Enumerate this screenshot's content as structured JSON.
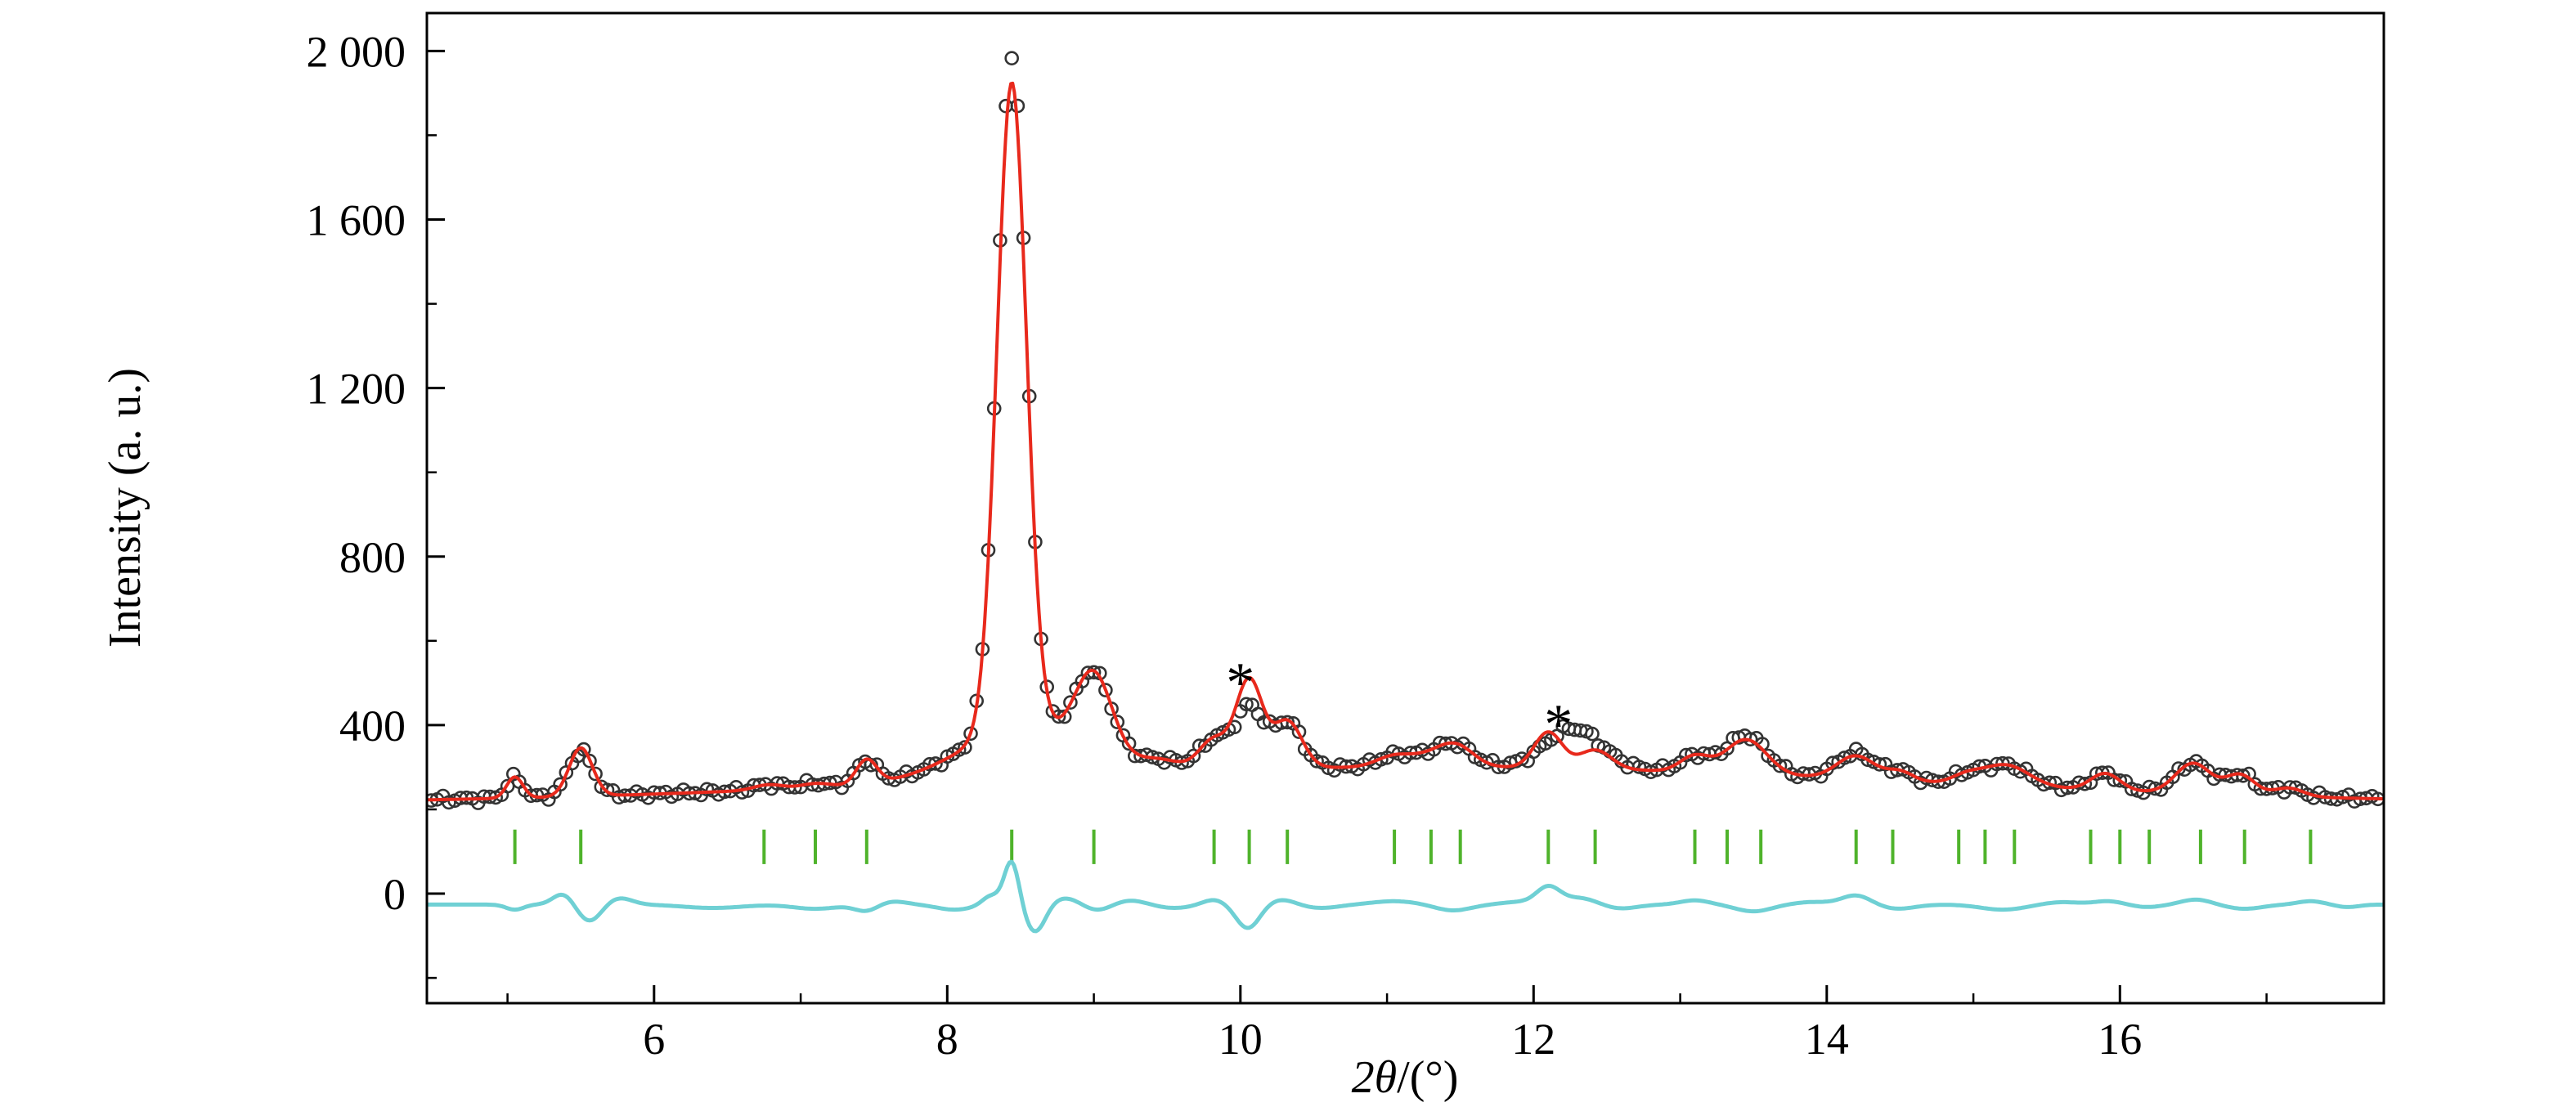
{
  "figure": {
    "background": "#ffffff",
    "frame_color": "#000000"
  },
  "chart_data": {
    "type": "line",
    "subtype": "rietveld-refinement-powder-xrd",
    "title": "",
    "xlabel_italic": "2θ",
    "xlabel_rest": "/(°)",
    "ylabel": "Intensity (a. u.)",
    "xlim": [
      4.45,
      17.8
    ],
    "ylim": [
      -260,
      2090
    ],
    "xticks": [
      6,
      8,
      10,
      12,
      14,
      16
    ],
    "xtick_labels": [
      "6",
      "8",
      "10",
      "12",
      "14",
      "16"
    ],
    "x_minor_step": 1,
    "yticks": [
      0,
      400,
      800,
      1200,
      1600,
      2000
    ],
    "ytick_labels": [
      "0",
      "400",
      "800",
      "1 200",
      "1 600",
      "2 000"
    ],
    "y_minor_step": 200,
    "grid": false,
    "legend": null,
    "background_model": {
      "base": 213,
      "hump_center": 11.3,
      "hump_amp": 88,
      "hump_sigma": 4.6
    },
    "noise_model": {
      "amp1": 6,
      "freq1": 37.7,
      "amp2": 4,
      "freq2": 91.3
    },
    "series": [
      {
        "name": "observed",
        "label": "observed intensity (open circles)",
        "style": "open-circle-markers",
        "color": "#333333",
        "marker_radius": 7.5,
        "marker_stroke": 2.6,
        "x_start": 4.48,
        "x_end": 17.76,
        "x_step": 0.04,
        "peaks": [
          [
            5.05,
            48,
            0.055
          ],
          [
            5.5,
            106,
            0.085
          ],
          [
            6.78,
            12,
            0.1
          ],
          [
            7.1,
            10,
            0.1
          ],
          [
            7.45,
            55,
            0.07
          ],
          [
            8.44,
            1600,
            0.1
          ],
          [
            8.52,
            120,
            0.42
          ],
          [
            9.0,
            185,
            0.125
          ],
          [
            9.45,
            22,
            0.15
          ],
          [
            9.82,
            72,
            0.1
          ],
          [
            10.06,
            146,
            0.095
          ],
          [
            10.32,
            110,
            0.1
          ],
          [
            11.05,
            26,
            0.12
          ],
          [
            11.28,
            20,
            0.12
          ],
          [
            11.47,
            50,
            0.12
          ],
          [
            12.27,
            96,
            0.19
          ],
          [
            13.1,
            38,
            0.1
          ],
          [
            13.45,
            92,
            0.14
          ],
          [
            14.2,
            62,
            0.13
          ],
          [
            14.5,
            22,
            0.09
          ],
          [
            14.95,
            18,
            0.1
          ],
          [
            15.22,
            50,
            0.16
          ],
          [
            15.9,
            40,
            0.1
          ],
          [
            16.5,
            72,
            0.12
          ],
          [
            16.82,
            48,
            0.1
          ],
          [
            17.15,
            20,
            0.1
          ]
        ]
      },
      {
        "name": "calculated",
        "label": "calculated (Rietveld fit) line",
        "style": "line",
        "color": "#e8291c",
        "stroke_width": 4,
        "peaks": [
          [
            5.05,
            50,
            0.055
          ],
          [
            5.5,
            115,
            0.08
          ],
          [
            6.78,
            12,
            0.1
          ],
          [
            7.1,
            10,
            0.1
          ],
          [
            7.45,
            58,
            0.07
          ],
          [
            8.44,
            1535,
            0.1
          ],
          [
            8.52,
            120,
            0.42
          ],
          [
            9.0,
            185,
            0.125
          ],
          [
            9.45,
            22,
            0.15
          ],
          [
            9.82,
            72,
            0.1
          ],
          [
            10.06,
            210,
            0.09
          ],
          [
            10.32,
            112,
            0.1
          ],
          [
            11.05,
            26,
            0.12
          ],
          [
            11.28,
            20,
            0.12
          ],
          [
            11.47,
            50,
            0.12
          ],
          [
            12.1,
            85,
            0.095
          ],
          [
            12.42,
            45,
            0.11
          ],
          [
            13.1,
            38,
            0.1
          ],
          [
            13.45,
            82,
            0.14
          ],
          [
            14.2,
            55,
            0.13
          ],
          [
            14.5,
            22,
            0.09
          ],
          [
            14.95,
            18,
            0.1
          ],
          [
            15.22,
            50,
            0.16
          ],
          [
            15.9,
            40,
            0.1
          ],
          [
            16.5,
            72,
            0.12
          ],
          [
            16.82,
            48,
            0.1
          ],
          [
            17.15,
            20,
            0.1
          ]
        ]
      },
      {
        "name": "difference",
        "label": "difference curve (obs - calc)",
        "style": "line",
        "color": "#6fd0d4",
        "stroke_width": 5,
        "baseline": -26,
        "wiggles": [
          [
            5.05,
            -12,
            0.06
          ],
          [
            5.38,
            26,
            0.07
          ],
          [
            5.56,
            -40,
            0.08
          ],
          [
            5.76,
            16,
            0.09
          ],
          [
            6.4,
            -8,
            0.2
          ],
          [
            7.1,
            -10,
            0.15
          ],
          [
            7.45,
            -16,
            0.08
          ],
          [
            7.62,
            8,
            0.1
          ],
          [
            8.05,
            -12,
            0.12
          ],
          [
            8.3,
            22,
            0.06
          ],
          [
            8.44,
            105,
            0.05
          ],
          [
            8.6,
            -66,
            0.07
          ],
          [
            8.8,
            16,
            0.1
          ],
          [
            9.02,
            -14,
            0.09
          ],
          [
            9.25,
            10,
            0.1
          ],
          [
            9.55,
            -8,
            0.12
          ],
          [
            9.82,
            12,
            0.08
          ],
          [
            10.05,
            -56,
            0.08
          ],
          [
            10.28,
            12,
            0.09
          ],
          [
            10.55,
            -8,
            0.12
          ],
          [
            11.05,
            8,
            0.15
          ],
          [
            11.45,
            -14,
            0.12
          ],
          [
            11.9,
            6,
            0.12
          ],
          [
            12.1,
            40,
            0.08
          ],
          [
            12.32,
            16,
            0.12
          ],
          [
            12.58,
            -10,
            0.12
          ],
          [
            13.1,
            10,
            0.1
          ],
          [
            13.5,
            -16,
            0.12
          ],
          [
            13.9,
            6,
            0.12
          ],
          [
            14.2,
            22,
            0.1
          ],
          [
            14.48,
            -10,
            0.12
          ],
          [
            15.2,
            -12,
            0.15
          ],
          [
            15.6,
            6,
            0.12
          ],
          [
            15.92,
            8,
            0.1
          ],
          [
            16.18,
            -6,
            0.1
          ],
          [
            16.52,
            12,
            0.1
          ],
          [
            16.85,
            -10,
            0.12
          ],
          [
            17.3,
            8,
            0.09
          ],
          [
            17.55,
            -6,
            0.08
          ]
        ]
      },
      {
        "name": "bragg_positions",
        "label": "Bragg reflection positions",
        "style": "vertical-ticks",
        "color": "#4fb32b",
        "stroke_width": 4,
        "y_span": [
          70,
          152
        ],
        "positions": [
          5.05,
          5.5,
          6.75,
          7.1,
          7.45,
          8.44,
          9.0,
          9.82,
          10.06,
          10.32,
          11.05,
          11.3,
          11.5,
          12.1,
          12.42,
          13.1,
          13.32,
          13.55,
          14.2,
          14.45,
          14.9,
          15.08,
          15.28,
          15.8,
          16.0,
          16.2,
          16.55,
          16.85,
          17.3
        ]
      }
    ],
    "annotations": [
      {
        "text": "*",
        "x": 10.0,
        "y": 514
      },
      {
        "text": "*",
        "x": 12.17,
        "y": 415
      }
    ]
  }
}
